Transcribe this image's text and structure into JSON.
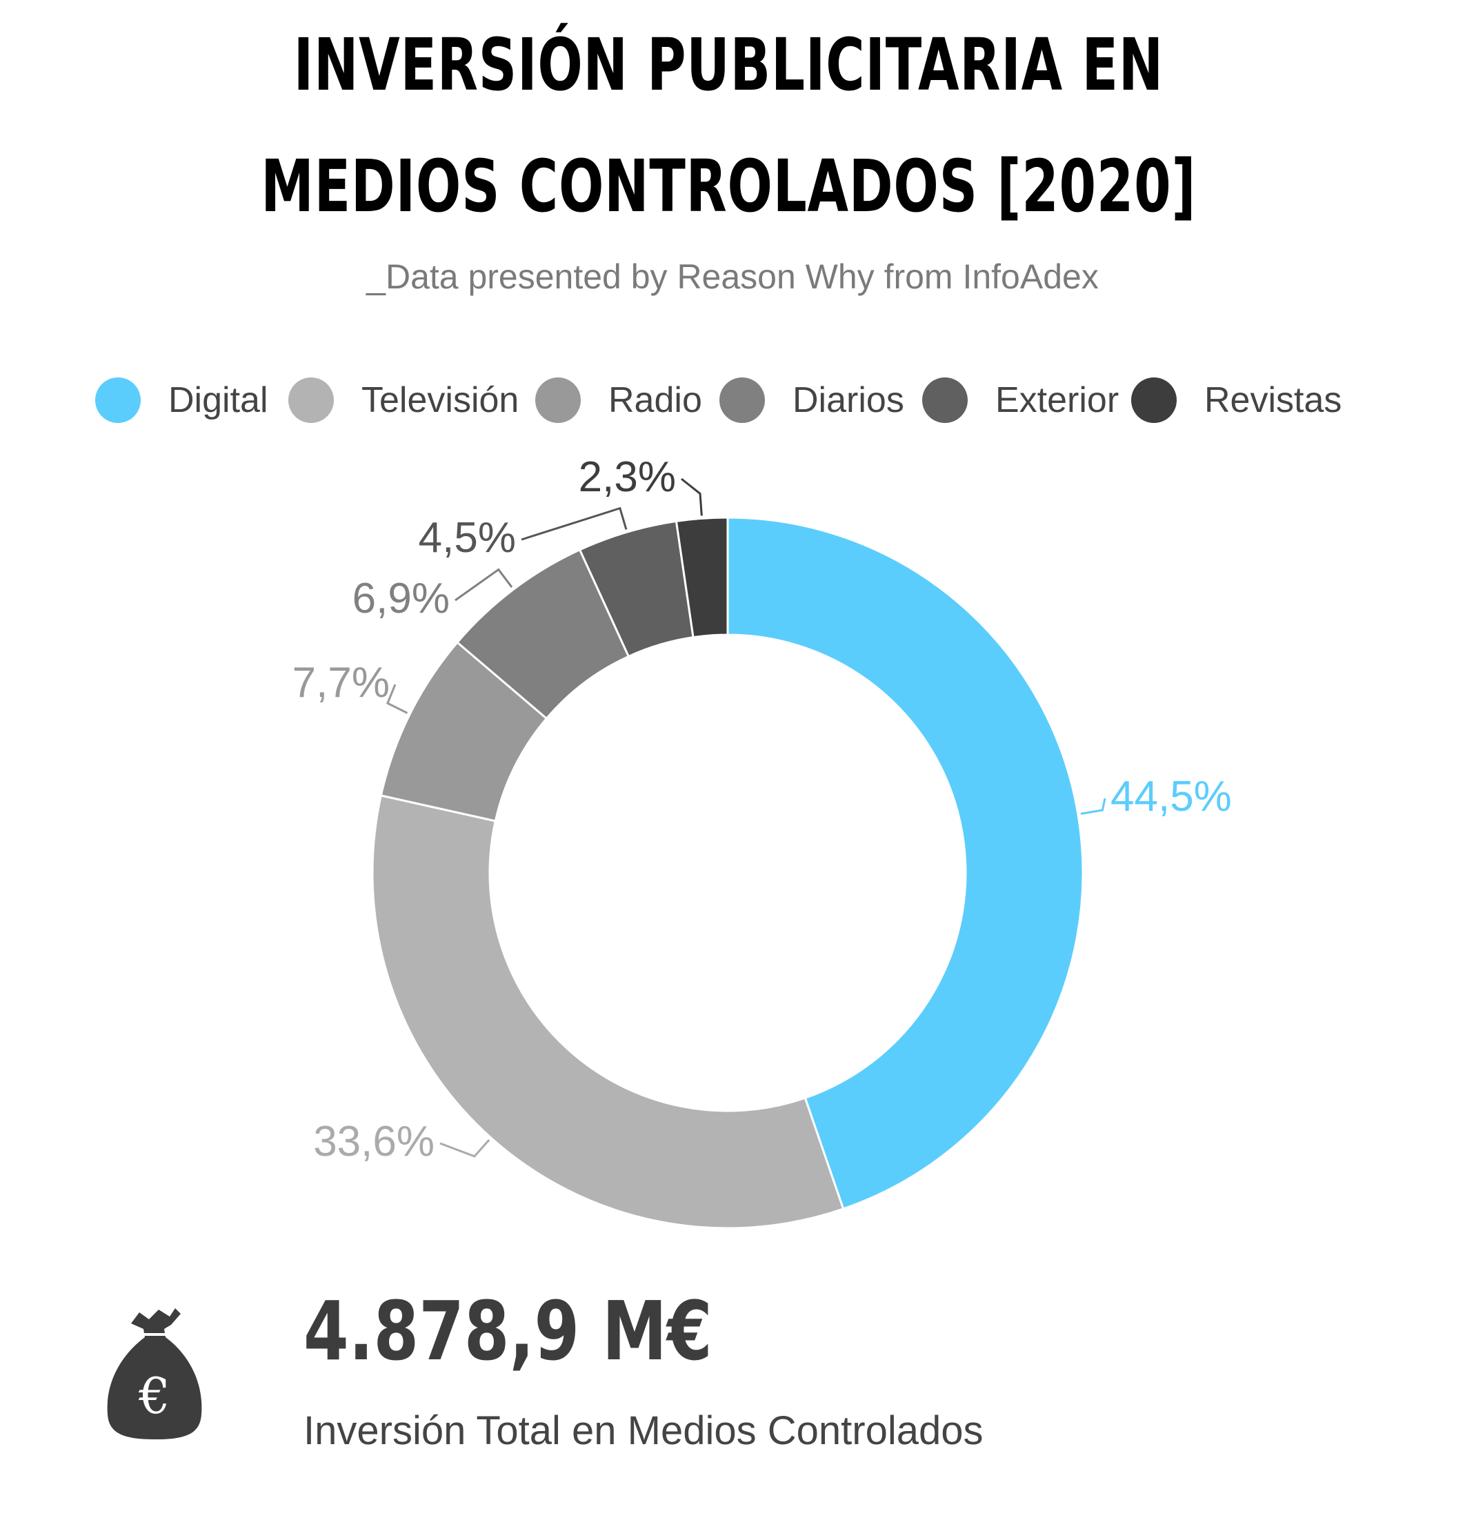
{
  "title_line1": "INVERSIÓN PUBLICITARIA EN",
  "title_line2": "MEDIOS CONTROLADOS [2020]",
  "subtitle": "_Data presented by Reason Why from InfoAdex",
  "legend": [
    {
      "label": "Digital",
      "color": "#5bcdfc"
    },
    {
      "label": "Televisión",
      "color": "#b3b3b3"
    },
    {
      "label": "Radio",
      "color": "#999999"
    },
    {
      "label": "Diarios",
      "color": "#808080"
    },
    {
      "label": "Exterior",
      "color": "#606060"
    },
    {
      "label": "Revistas",
      "color": "#3d3d3d"
    }
  ],
  "chart_data": {
    "type": "pie",
    "donut": true,
    "categories": [
      "Digital",
      "Televisión",
      "Radio",
      "Diarios",
      "Exterior",
      "Revistas"
    ],
    "values": [
      44.5,
      33.6,
      7.7,
      6.9,
      4.5,
      2.3
    ],
    "labels": [
      "44,5%",
      "33,6%",
      "7,7%",
      "6,9%",
      "4,5%",
      "2,3%"
    ],
    "colors": [
      "#5bcdfc",
      "#b3b3b3",
      "#999999",
      "#808080",
      "#606060",
      "#3d3d3d"
    ],
    "label_colors": [
      "#5bcdfc",
      "#aaaaaa",
      "#999999",
      "#808080",
      "#555555",
      "#3d3d3d"
    ],
    "legend_position": "top",
    "start_angle": "top",
    "direction": "clockwise"
  },
  "total": {
    "value": "4.878,9 M€",
    "label": "Inversión Total en Medios Controlados",
    "icon": "money-bag-euro-icon",
    "icon_symbol": "€"
  }
}
